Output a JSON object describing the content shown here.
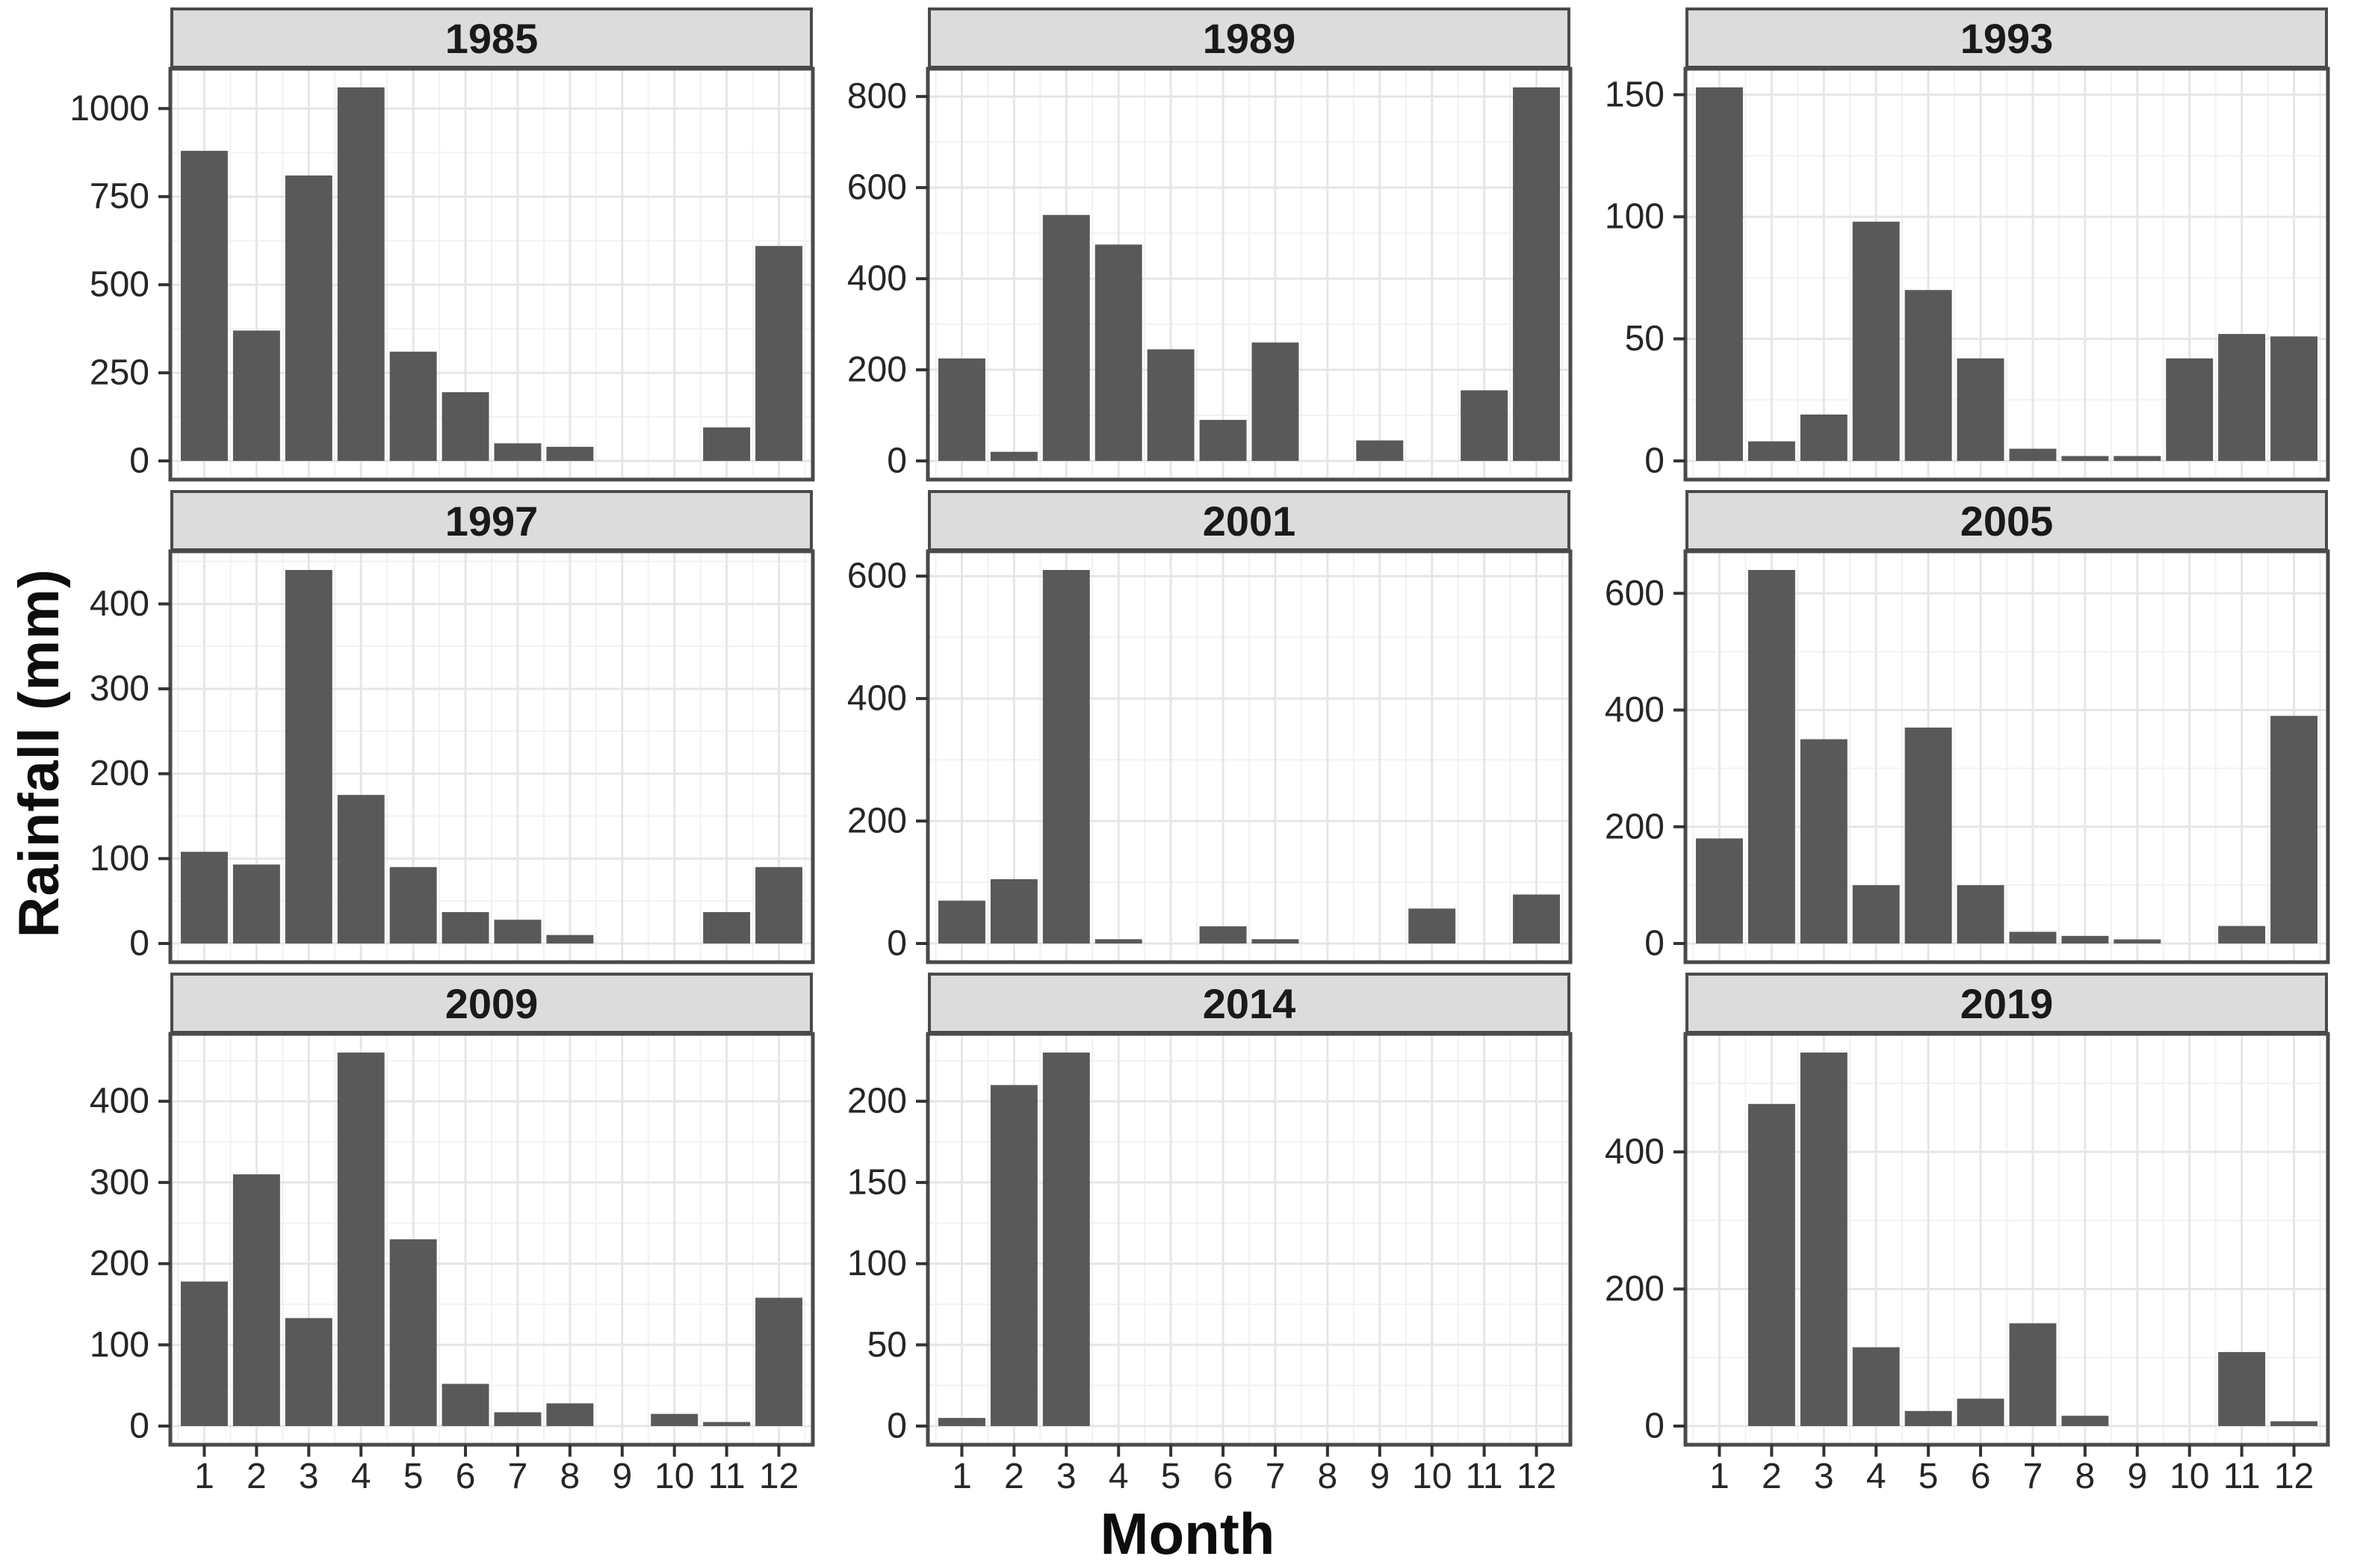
{
  "chart_data": {
    "type": "bar",
    "title": "",
    "xlabel": "Month",
    "ylabel": "Rainfall (mm)",
    "categories": [
      1,
      2,
      3,
      4,
      5,
      6,
      7,
      8,
      9,
      10,
      11,
      12
    ],
    "legend": "none",
    "grid": "on",
    "facets": [
      {
        "year": "1985",
        "values": [
          880,
          370,
          810,
          1060,
          310,
          195,
          50,
          40,
          0,
          0,
          95,
          610
        ],
        "y_ticks": [
          0,
          250,
          500,
          750,
          1000
        ]
      },
      {
        "year": "1989",
        "values": [
          225,
          20,
          540,
          475,
          245,
          90,
          260,
          0,
          45,
          0,
          155,
          820
        ],
        "y_ticks": [
          0,
          200,
          400,
          600,
          800
        ]
      },
      {
        "year": "1993",
        "values": [
          153,
          8,
          19,
          98,
          70,
          42,
          5,
          2,
          2,
          42,
          52,
          51
        ],
        "y_ticks": [
          0,
          50,
          100,
          150
        ]
      },
      {
        "year": "1997",
        "values": [
          108,
          93,
          440,
          175,
          90,
          37,
          28,
          10,
          0,
          0,
          37,
          90
        ],
        "y_ticks": [
          0,
          100,
          200,
          300,
          400
        ]
      },
      {
        "year": "2001",
        "values": [
          70,
          105,
          610,
          7,
          0,
          28,
          7,
          0,
          0,
          57,
          0,
          80
        ],
        "y_ticks": [
          0,
          200,
          400,
          600
        ]
      },
      {
        "year": "2005",
        "values": [
          180,
          640,
          350,
          100,
          370,
          100,
          20,
          13,
          7,
          0,
          30,
          390
        ],
        "y_ticks": [
          0,
          200,
          400,
          600
        ]
      },
      {
        "year": "2009",
        "values": [
          178,
          310,
          133,
          460,
          230,
          52,
          17,
          28,
          0,
          15,
          5,
          158
        ],
        "y_ticks": [
          0,
          100,
          200,
          300,
          400
        ]
      },
      {
        "year": "2014",
        "values": [
          5,
          210,
          230,
          0,
          0,
          0,
          0,
          0,
          0,
          0,
          0,
          0
        ],
        "y_ticks": [
          0,
          50,
          100,
          150,
          200
        ]
      },
      {
        "year": "2019",
        "values": [
          0,
          470,
          545,
          115,
          22,
          40,
          150,
          15,
          0,
          0,
          108,
          7
        ],
        "y_ticks": [
          0,
          200,
          400
        ]
      }
    ],
    "colors": {
      "bar": "#595959",
      "strip_fill": "#dcdcdc",
      "panel_border": "#4a4a4a",
      "grid_major": "#e6e6e6",
      "grid_minor": "#f2f2f2",
      "tick_text": "#262626",
      "axis_title": "#0d0d0d"
    }
  }
}
